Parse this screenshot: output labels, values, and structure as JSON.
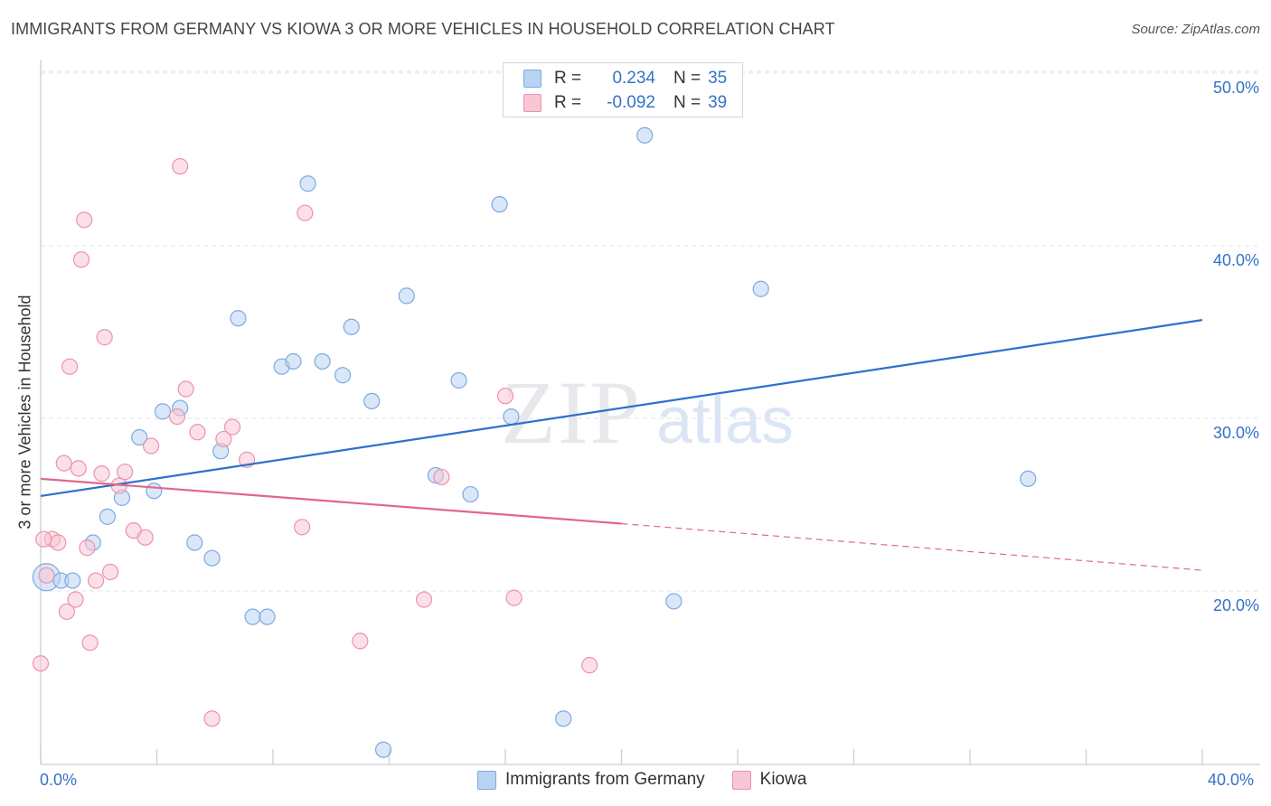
{
  "title": "IMMIGRANTS FROM GERMANY VS KIOWA 3 OR MORE VEHICLES IN HOUSEHOLD CORRELATION CHART",
  "source": "Source: ZipAtlas.com",
  "watermark": {
    "zip": "ZIP",
    "atlas": "atlas"
  },
  "legend": {
    "rows": [
      {
        "r_label": "R =",
        "r_value": "0.234",
        "n_label": "N =",
        "n_value": "35"
      },
      {
        "r_label": "R =",
        "r_value": "-0.092",
        "n_label": "N =",
        "n_value": "39"
      }
    ]
  },
  "colors": {
    "blue_fill": "#b9d3f3",
    "blue_stroke": "#7ea9e0",
    "blue_line": "#2f6fce",
    "pink_fill": "#f8c6d4",
    "pink_stroke": "#eb93ad",
    "pink_line": "#e0668f",
    "tick_label": "#3472c8",
    "grid": "#dde1e7"
  },
  "chart_data": {
    "type": "scatter",
    "title": "IMMIGRANTS FROM GERMANY VS KIOWA 3 OR MORE VEHICLES IN HOUSEHOLD CORRELATION CHART",
    "xlabel": "",
    "ylabel": "3 or more Vehicles in Household",
    "xlim": [
      0,
      40
    ],
    "ylim": [
      10,
      51
    ],
    "x_tick_labels": [
      "0.0%",
      "40.0%"
    ],
    "y_ticks": [
      20,
      30,
      40,
      50
    ],
    "y_tick_labels": [
      "20.0%",
      "30.0%",
      "40.0%",
      "50.0%"
    ],
    "grid": true,
    "legend_position": "top-center",
    "series": [
      {
        "name": "Immigrants from Germany",
        "color": "#b9d3f3",
        "points": [
          [
            0.2,
            20.8
          ],
          [
            0.7,
            20.6
          ],
          [
            1.1,
            20.6
          ],
          [
            1.8,
            22.8
          ],
          [
            2.3,
            24.3
          ],
          [
            2.8,
            25.4
          ],
          [
            3.4,
            28.9
          ],
          [
            3.9,
            25.8
          ],
          [
            4.2,
            30.4
          ],
          [
            4.8,
            30.6
          ],
          [
            5.3,
            22.8
          ],
          [
            5.9,
            21.9
          ],
          [
            6.2,
            28.1
          ],
          [
            6.8,
            35.8
          ],
          [
            7.3,
            18.5
          ],
          [
            7.8,
            18.5
          ],
          [
            8.3,
            33.0
          ],
          [
            8.7,
            33.3
          ],
          [
            9.2,
            43.6
          ],
          [
            9.7,
            33.3
          ],
          [
            10.4,
            32.5
          ],
          [
            10.7,
            35.3
          ],
          [
            11.4,
            31.0
          ],
          [
            11.8,
            10.8
          ],
          [
            12.6,
            37.1
          ],
          [
            13.6,
            26.7
          ],
          [
            14.4,
            32.2
          ],
          [
            14.8,
            25.6
          ],
          [
            15.8,
            42.4
          ],
          [
            16.2,
            30.1
          ],
          [
            18.0,
            12.6
          ],
          [
            20.8,
            46.4
          ],
          [
            21.8,
            19.4
          ],
          [
            24.8,
            37.5
          ],
          [
            34.0,
            26.5
          ]
        ],
        "trend": {
          "x": [
            0,
            40
          ],
          "y": [
            25.5,
            35.7
          ]
        }
      },
      {
        "name": "Kiowa",
        "color": "#f8c6d4",
        "points": [
          [
            0.0,
            15.8
          ],
          [
            0.2,
            20.9
          ],
          [
            0.4,
            23.0
          ],
          [
            0.6,
            22.8
          ],
          [
            0.8,
            27.4
          ],
          [
            0.9,
            18.8
          ],
          [
            1.0,
            33.0
          ],
          [
            1.2,
            19.5
          ],
          [
            1.3,
            27.1
          ],
          [
            1.4,
            39.2
          ],
          [
            1.5,
            41.5
          ],
          [
            1.6,
            22.5
          ],
          [
            1.7,
            17.0
          ],
          [
            1.9,
            20.6
          ],
          [
            2.1,
            26.8
          ],
          [
            2.2,
            34.7
          ],
          [
            2.4,
            21.1
          ],
          [
            2.7,
            26.1
          ],
          [
            2.9,
            26.9
          ],
          [
            3.2,
            23.5
          ],
          [
            3.6,
            23.1
          ],
          [
            3.8,
            28.4
          ],
          [
            4.7,
            30.1
          ],
          [
            4.8,
            44.6
          ],
          [
            5.0,
            31.7
          ],
          [
            5.4,
            29.2
          ],
          [
            5.9,
            12.6
          ],
          [
            6.3,
            28.8
          ],
          [
            6.6,
            29.5
          ],
          [
            7.1,
            27.6
          ],
          [
            9.0,
            23.7
          ],
          [
            9.1,
            41.9
          ],
          [
            11.0,
            17.1
          ],
          [
            13.2,
            19.5
          ],
          [
            13.8,
            26.6
          ],
          [
            16.0,
            31.3
          ],
          [
            16.3,
            19.6
          ],
          [
            18.9,
            15.7
          ],
          [
            0.1,
            23.0
          ]
        ],
        "trend": {
          "x": [
            0,
            20
          ],
          "y": [
            26.5,
            23.9
          ]
        },
        "trend_dashed": {
          "x": [
            20,
            40
          ],
          "y": [
            23.9,
            21.2
          ]
        }
      }
    ]
  },
  "bottom_legend": [
    {
      "label": "Immigrants from Germany"
    },
    {
      "label": "Kiowa"
    }
  ]
}
